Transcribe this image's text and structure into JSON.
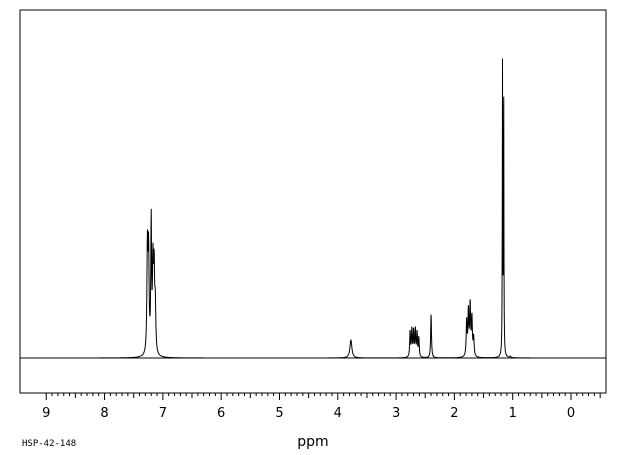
{
  "chart_data": {
    "type": "line",
    "xlabel": "ppm",
    "sample_id": "HSP-42-148",
    "xlim": [
      9.45,
      -0.6
    ],
    "ylim": [
      -0.1,
      1.0
    ],
    "x_ticks": [
      9,
      8,
      7,
      6,
      5,
      4,
      3,
      2,
      1,
      0
    ],
    "grid": false,
    "series": [
      {
        "peaks": [
          {
            "ppm": 7.265,
            "height": 0.32,
            "width": 0.01
          },
          {
            "ppm": 7.245,
            "height": 0.3,
            "width": 0.01
          },
          {
            "ppm": 7.2,
            "height": 0.4,
            "width": 0.008
          },
          {
            "ppm": 7.17,
            "height": 0.26,
            "width": 0.01
          },
          {
            "ppm": 7.15,
            "height": 0.24,
            "width": 0.01
          },
          {
            "ppm": 7.13,
            "height": 0.14,
            "width": 0.01
          },
          {
            "ppm": 3.775,
            "height": 0.055,
            "width": 0.02
          },
          {
            "ppm": 2.76,
            "height": 0.08,
            "width": 0.008
          },
          {
            "ppm": 2.73,
            "height": 0.085,
            "width": 0.008
          },
          {
            "ppm": 2.7,
            "height": 0.08,
            "width": 0.008
          },
          {
            "ppm": 2.67,
            "height": 0.085,
            "width": 0.008
          },
          {
            "ppm": 2.64,
            "height": 0.075,
            "width": 0.008
          },
          {
            "ppm": 2.61,
            "height": 0.06,
            "width": 0.008
          },
          {
            "ppm": 2.4,
            "height": 0.135,
            "width": 0.008
          },
          {
            "ppm": 1.79,
            "height": 0.11,
            "width": 0.009
          },
          {
            "ppm": 1.76,
            "height": 0.14,
            "width": 0.009
          },
          {
            "ppm": 1.73,
            "height": 0.16,
            "width": 0.009
          },
          {
            "ppm": 1.7,
            "height": 0.12,
            "width": 0.009
          },
          {
            "ppm": 1.67,
            "height": 0.06,
            "width": 0.009
          },
          {
            "ppm": 1.175,
            "height": 0.88,
            "width": 0.004
          },
          {
            "ppm": 1.155,
            "height": 0.86,
            "width": 0.004
          },
          {
            "ppm": 1.04,
            "height": 0.004,
            "width": 0.01
          }
        ]
      }
    ]
  }
}
